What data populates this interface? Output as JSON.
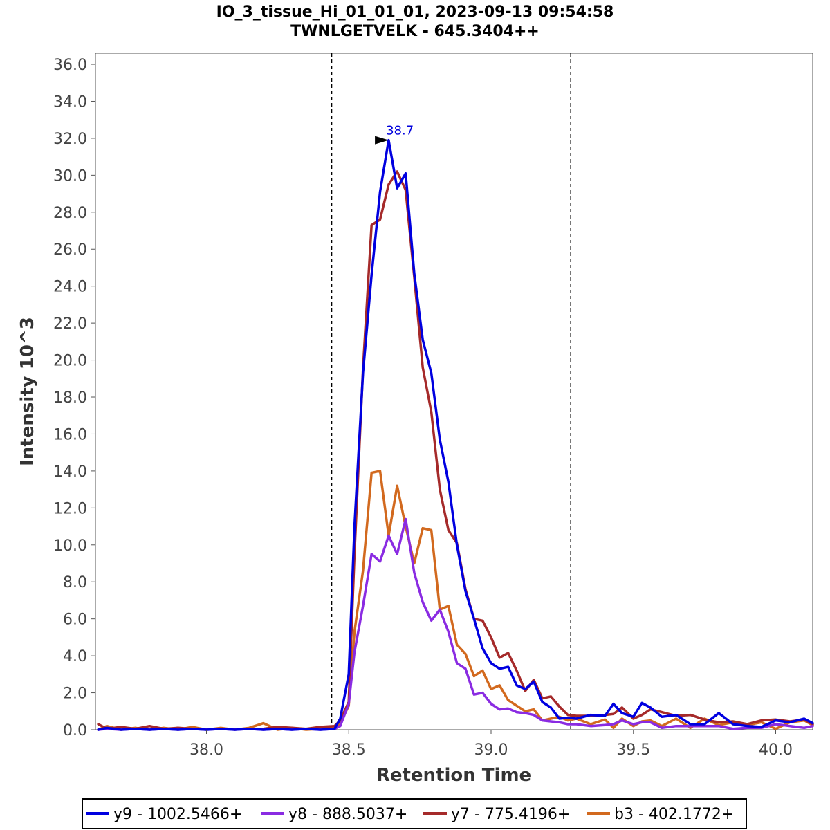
{
  "chart_data": {
    "type": "line",
    "title": "IO_3_tissue_Hi_01_01_01, 2023-09-13 09:54:58",
    "subtitle": "TWNLGETVELK - 645.3404++",
    "xlabel": "Retention Time",
    "ylabel": "Intensity 10^3",
    "xlim": [
      37.61,
      40.13
    ],
    "ylim": [
      0,
      36.6
    ],
    "x_ticks": [
      38.0,
      38.5,
      39.0,
      39.5,
      40.0
    ],
    "x_tick_labels": [
      "38.0",
      "38.5",
      "39.0",
      "39.5",
      "40.0"
    ],
    "y_ticks": [
      0,
      2,
      4,
      6,
      8,
      10,
      12,
      14,
      16,
      18,
      20,
      22,
      24,
      26,
      28,
      30,
      32,
      34,
      36
    ],
    "y_tick_labels": [
      "0.0",
      "2.0",
      "4.0",
      "6.0",
      "8.0",
      "10.0",
      "12.0",
      "14.0",
      "16.0",
      "18.0",
      "20.0",
      "22.0",
      "24.0",
      "26.0",
      "28.0",
      "30.0",
      "32.0",
      "34.0",
      "36.0"
    ],
    "grid": false,
    "boundaries": [
      38.44,
      39.28
    ],
    "peak_annotation": {
      "label": "38.7",
      "x": 38.66,
      "y": 31.9,
      "color": "#0000dd"
    },
    "legend_position": "bottom",
    "series": [
      {
        "name": "y9 - 1002.5466+",
        "color": "#0000e0",
        "x": [
          37.62,
          37.65,
          37.7,
          37.75,
          37.8,
          37.85,
          37.9,
          37.95,
          38.0,
          38.05,
          38.1,
          38.15,
          38.2,
          38.25,
          38.3,
          38.35,
          38.4,
          38.45,
          38.47,
          38.5,
          38.52,
          38.55,
          38.58,
          38.61,
          38.64,
          38.67,
          38.7,
          38.73,
          38.76,
          38.79,
          38.82,
          38.85,
          38.88,
          38.91,
          38.94,
          38.97,
          39.0,
          39.03,
          39.06,
          39.09,
          39.12,
          39.15,
          39.18,
          39.21,
          39.24,
          39.27,
          39.3,
          39.35,
          39.4,
          39.43,
          39.46,
          39.5,
          39.53,
          39.56,
          39.6,
          39.65,
          39.7,
          39.75,
          39.8,
          39.85,
          39.9,
          39.95,
          40.0,
          40.05,
          40.1,
          40.13
        ],
        "y": [
          0.0,
          0.1,
          0.0,
          0.05,
          0.0,
          0.05,
          0.0,
          0.05,
          0.0,
          0.05,
          0.0,
          0.05,
          0.0,
          0.05,
          0.0,
          0.05,
          0.0,
          0.05,
          0.6,
          3.0,
          11.0,
          19.3,
          24.6,
          29.1,
          31.9,
          29.3,
          30.1,
          24.7,
          21.1,
          19.3,
          15.7,
          13.4,
          10.0,
          7.5,
          6.0,
          4.4,
          3.6,
          3.3,
          3.4,
          2.4,
          2.2,
          2.6,
          1.5,
          1.2,
          0.6,
          0.65,
          0.6,
          0.8,
          0.75,
          1.4,
          0.9,
          0.7,
          1.45,
          1.2,
          0.7,
          0.8,
          0.3,
          0.3,
          0.9,
          0.3,
          0.2,
          0.15,
          0.5,
          0.4,
          0.6,
          0.35
        ]
      },
      {
        "name": "y8 - 888.5037+",
        "color": "#8a2be2",
        "x": [
          37.62,
          37.65,
          37.7,
          37.75,
          37.8,
          37.85,
          37.9,
          37.95,
          38.0,
          38.05,
          38.1,
          38.15,
          38.2,
          38.25,
          38.3,
          38.35,
          38.4,
          38.45,
          38.47,
          38.5,
          38.52,
          38.55,
          38.58,
          38.61,
          38.64,
          38.67,
          38.7,
          38.73,
          38.76,
          38.79,
          38.82,
          38.85,
          38.88,
          38.91,
          38.94,
          38.97,
          39.0,
          39.03,
          39.06,
          39.09,
          39.12,
          39.15,
          39.18,
          39.21,
          39.24,
          39.27,
          39.3,
          39.35,
          39.4,
          39.43,
          39.46,
          39.5,
          39.53,
          39.56,
          39.6,
          39.65,
          39.7,
          39.75,
          39.8,
          39.85,
          39.9,
          39.95,
          40.0,
          40.05,
          40.1,
          40.13
        ],
        "y": [
          0.0,
          0.05,
          0.0,
          0.05,
          0.0,
          0.05,
          0.0,
          0.05,
          0.0,
          0.05,
          0.0,
          0.05,
          0.0,
          0.05,
          0.0,
          0.05,
          0.0,
          0.05,
          0.2,
          1.4,
          4.2,
          6.7,
          9.5,
          9.1,
          10.5,
          9.5,
          11.4,
          8.5,
          6.9,
          5.9,
          6.5,
          5.3,
          3.6,
          3.3,
          1.9,
          2.0,
          1.4,
          1.1,
          1.15,
          0.95,
          0.9,
          0.8,
          0.5,
          0.45,
          0.4,
          0.3,
          0.3,
          0.2,
          0.25,
          0.3,
          0.5,
          0.3,
          0.4,
          0.4,
          0.1,
          0.2,
          0.2,
          0.2,
          0.2,
          0.05,
          0.1,
          0.1,
          0.3,
          0.2,
          0.1,
          0.2
        ]
      },
      {
        "name": "y7 - 775.4196+",
        "color": "#a52a2a",
        "x": [
          37.62,
          37.65,
          37.7,
          37.75,
          37.8,
          37.85,
          37.9,
          37.95,
          38.0,
          38.05,
          38.1,
          38.15,
          38.2,
          38.25,
          38.3,
          38.35,
          38.4,
          38.45,
          38.47,
          38.5,
          38.52,
          38.55,
          38.58,
          38.61,
          38.64,
          38.67,
          38.7,
          38.73,
          38.76,
          38.79,
          38.82,
          38.85,
          38.88,
          38.91,
          38.94,
          38.97,
          39.0,
          39.03,
          39.06,
          39.09,
          39.12,
          39.15,
          39.18,
          39.21,
          39.24,
          39.27,
          39.3,
          39.35,
          39.4,
          39.43,
          39.46,
          39.5,
          39.53,
          39.56,
          39.6,
          39.65,
          39.7,
          39.75,
          39.8,
          39.85,
          39.9,
          39.95,
          40.0,
          40.05,
          40.1,
          40.13
        ],
        "y": [
          0.3,
          0.05,
          0.15,
          0.05,
          0.2,
          0.05,
          0.1,
          0.05,
          0.05,
          0.05,
          0.05,
          0.05,
          0.05,
          0.15,
          0.1,
          0.05,
          0.15,
          0.2,
          0.5,
          1.5,
          9.5,
          19.5,
          27.3,
          27.6,
          29.5,
          30.2,
          29.2,
          24.5,
          19.6,
          17.2,
          13.0,
          10.8,
          10.1,
          7.6,
          6.0,
          5.9,
          5.0,
          3.9,
          4.15,
          3.2,
          2.1,
          2.7,
          1.7,
          1.8,
          1.25,
          0.8,
          0.75,
          0.75,
          0.8,
          0.85,
          1.2,
          0.6,
          0.8,
          1.1,
          0.95,
          0.75,
          0.8,
          0.55,
          0.4,
          0.45,
          0.3,
          0.5,
          0.55,
          0.45,
          0.55,
          0.3
        ]
      },
      {
        "name": "b3 - 402.1772+",
        "color": "#d2691e",
        "x": [
          37.62,
          37.65,
          37.7,
          37.75,
          37.8,
          37.85,
          37.9,
          37.95,
          38.0,
          38.05,
          38.1,
          38.15,
          38.2,
          38.25,
          38.3,
          38.35,
          38.4,
          38.45,
          38.47,
          38.5,
          38.52,
          38.55,
          38.58,
          38.61,
          38.64,
          38.67,
          38.7,
          38.73,
          38.76,
          38.79,
          38.82,
          38.85,
          38.88,
          38.91,
          38.94,
          38.97,
          39.0,
          39.03,
          39.06,
          39.09,
          39.12,
          39.15,
          39.18,
          39.21,
          39.24,
          39.27,
          39.3,
          39.35,
          39.4,
          39.43,
          39.46,
          39.5,
          39.53,
          39.56,
          39.6,
          39.65,
          39.7,
          39.75,
          39.8,
          39.85,
          39.9,
          39.95,
          40.0,
          40.05,
          40.1,
          40.13
        ],
        "y": [
          0.0,
          0.2,
          0.0,
          0.1,
          0.0,
          0.1,
          0.0,
          0.15,
          0.0,
          0.1,
          0.0,
          0.1,
          0.35,
          0.0,
          0.1,
          0.0,
          0.05,
          0.1,
          0.35,
          1.3,
          5.3,
          8.6,
          13.9,
          14.0,
          10.5,
          13.2,
          11.0,
          9.0,
          10.9,
          10.8,
          6.5,
          6.7,
          4.6,
          4.1,
          2.9,
          3.2,
          2.2,
          2.4,
          1.6,
          1.3,
          1.0,
          1.1,
          0.5,
          0.6,
          0.7,
          0.5,
          0.6,
          0.3,
          0.55,
          0.1,
          0.6,
          0.2,
          0.45,
          0.5,
          0.2,
          0.6,
          0.1,
          0.6,
          0.25,
          0.4,
          0.25,
          0.4,
          0.05,
          0.4,
          0.5,
          0.25
        ]
      }
    ]
  }
}
